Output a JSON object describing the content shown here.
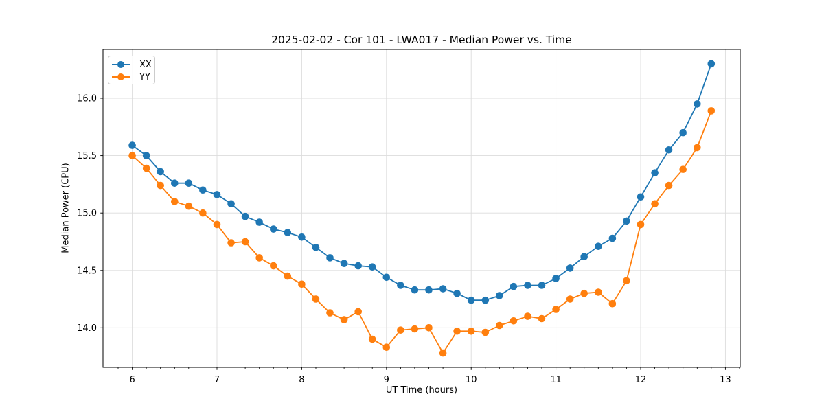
{
  "chart_data": {
    "type": "line",
    "title": "2025-02-02 - Cor 101 - LWA017 - Median Power vs. Time",
    "xlabel": "UT Time (hours)",
    "ylabel": "Median Power (CPU)",
    "legend_position": "upper left",
    "grid": true,
    "grid_color": "#dcdcdc",
    "spine_color": "#000000",
    "text_color": "#000000",
    "background": "#ffffff",
    "marker": "circle",
    "xlim": [
      5.655,
      13.175
    ],
    "ylim": [
      13.655,
      16.425
    ],
    "x_major_ticks": [
      6,
      7,
      8,
      9,
      10,
      11,
      12,
      13
    ],
    "x_tick_labels": [
      "6",
      "7",
      "8",
      "9",
      "10",
      "11",
      "12",
      "13"
    ],
    "x_minor_step": 0.16667,
    "y_major_ticks": [
      14.0,
      14.5,
      15.0,
      15.5,
      16.0
    ],
    "y_tick_labels": [
      "14.0",
      "14.5",
      "15.0",
      "15.5",
      "16.0"
    ],
    "x": [
      6.0,
      6.167,
      6.333,
      6.5,
      6.667,
      6.833,
      7.0,
      7.167,
      7.333,
      7.5,
      7.667,
      7.833,
      8.0,
      8.167,
      8.333,
      8.5,
      8.667,
      8.833,
      9.0,
      9.167,
      9.333,
      9.5,
      9.667,
      9.833,
      10.0,
      10.167,
      10.333,
      10.5,
      10.667,
      10.833,
      11.0,
      11.167,
      11.333,
      11.5,
      11.667,
      11.833,
      12.0,
      12.167,
      12.333,
      12.5,
      12.667,
      12.833
    ],
    "series": [
      {
        "name": "XX",
        "color": "#1f77b4",
        "values": [
          15.59,
          15.5,
          15.36,
          15.26,
          15.26,
          15.2,
          15.16,
          15.08,
          14.97,
          14.92,
          14.86,
          14.83,
          14.79,
          14.7,
          14.61,
          14.56,
          14.54,
          14.53,
          14.44,
          14.37,
          14.33,
          14.33,
          14.34,
          14.3,
          14.24,
          14.24,
          14.28,
          14.36,
          14.37,
          14.37,
          14.43,
          14.52,
          14.62,
          14.71,
          14.78,
          14.93,
          15.14,
          15.35,
          15.55,
          15.7,
          15.95,
          16.3
        ]
      },
      {
        "name": "YY",
        "color": "#ff7f0e",
        "values": [
          15.5,
          15.39,
          15.24,
          15.1,
          15.06,
          15.0,
          14.9,
          14.74,
          14.75,
          14.61,
          14.54,
          14.45,
          14.38,
          14.25,
          14.13,
          14.07,
          14.14,
          13.9,
          13.83,
          13.98,
          13.99,
          14.0,
          13.78,
          13.97,
          13.97,
          13.96,
          14.02,
          14.06,
          14.1,
          14.08,
          14.16,
          14.25,
          14.3,
          14.31,
          14.21,
          14.41,
          14.9,
          15.08,
          15.24,
          15.38,
          15.57,
          15.89
        ]
      }
    ]
  }
}
